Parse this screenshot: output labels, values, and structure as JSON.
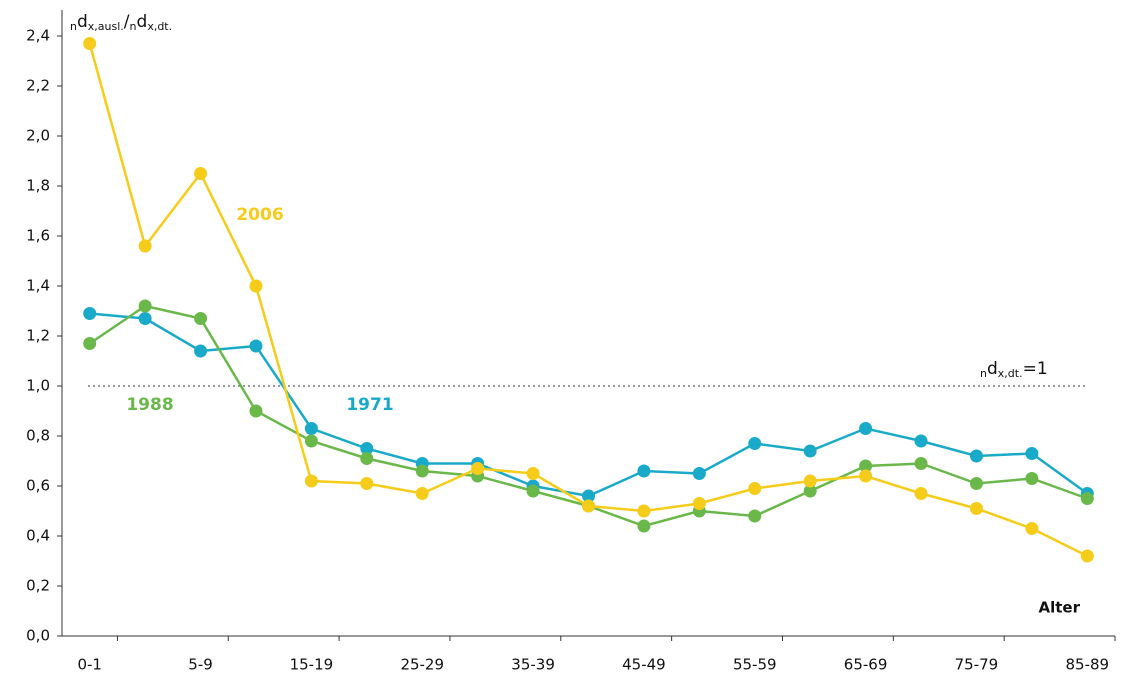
{
  "chart_data": {
    "type": "line",
    "y_label": [
      "n",
      "d",
      "x,ausl.",
      "/",
      "n",
      "d",
      "x,dt."
    ],
    "x_label": "Alter",
    "categories": [
      "0-1",
      null,
      "5-9",
      null,
      "15-19",
      null,
      "25-29",
      null,
      "35-39",
      null,
      "45-49",
      null,
      "55-59",
      null,
      "65-69",
      null,
      "75-79",
      null,
      "85-89"
    ],
    "series": [
      {
        "name": "1971",
        "color": "#1aaac9",
        "values": [
          1.29,
          1.27,
          1.14,
          1.16,
          0.83,
          0.75,
          0.69,
          0.69,
          0.6,
          0.56,
          0.66,
          0.65,
          0.77,
          0.74,
          0.83,
          0.78,
          0.72,
          0.73,
          0.57
        ]
      },
      {
        "name": "1988",
        "color": "#6ab84a",
        "values": [
          1.17,
          1.32,
          1.27,
          0.9,
          0.78,
          0.71,
          0.66,
          0.64,
          0.58,
          0.52,
          0.44,
          0.5,
          0.48,
          0.58,
          0.68,
          0.69,
          0.61,
          0.63,
          0.55
        ]
      },
      {
        "name": "2006",
        "color": "#f5cc1a",
        "values": [
          2.37,
          1.56,
          1.85,
          1.4,
          0.62,
          0.61,
          0.57,
          0.67,
          0.65,
          0.52,
          0.5,
          0.53,
          0.59,
          0.62,
          0.64,
          0.57,
          0.51,
          0.43,
          0.32
        ]
      }
    ],
    "reference_line": {
      "value": 1,
      "label": [
        "n",
        "d",
        "x,dt.",
        "=1"
      ]
    },
    "ylim": [
      0,
      2.4
    ],
    "yticks": [
      {
        "value": 0,
        "label": "0,0"
      },
      {
        "value": 0.2,
        "label": "0,2"
      },
      {
        "value": 0.4,
        "label": "0,4"
      },
      {
        "value": 0.6,
        "label": "0,6"
      },
      {
        "value": 0.8,
        "label": "0,8"
      },
      {
        "value": 1,
        "label": "1,0"
      },
      {
        "value": 1.2,
        "label": "1,2"
      },
      {
        "value": 1.4,
        "label": "1,4"
      },
      {
        "value": 1.6,
        "label": "1,6"
      },
      {
        "value": 1.8,
        "label": "1,8"
      },
      {
        "value": 2,
        "label": "2,0"
      },
      {
        "value": 2.2,
        "label": "2,2"
      },
      {
        "value": 2.4,
        "label": "2,4"
      }
    ]
  }
}
